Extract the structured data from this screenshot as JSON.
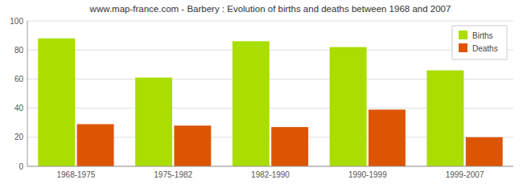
{
  "chart_data": {
    "type": "bar",
    "title": "www.map-france.com - Barbery : Evolution of births and deaths between 1968 and 2007",
    "categories": [
      "1968-1975",
      "1975-1982",
      "1982-1990",
      "1990-1999",
      "1999-2007"
    ],
    "series": [
      {
        "name": "Births",
        "color": "#aadd00",
        "values": [
          88,
          61,
          86,
          82,
          66
        ]
      },
      {
        "name": "Deaths",
        "color": "#dd5500",
        "values": [
          29,
          28,
          27,
          39,
          20
        ]
      }
    ],
    "ylim": [
      0,
      100
    ],
    "yticks": [
      0,
      20,
      40,
      60,
      80,
      100
    ],
    "grid": true,
    "legend": "upper right"
  }
}
